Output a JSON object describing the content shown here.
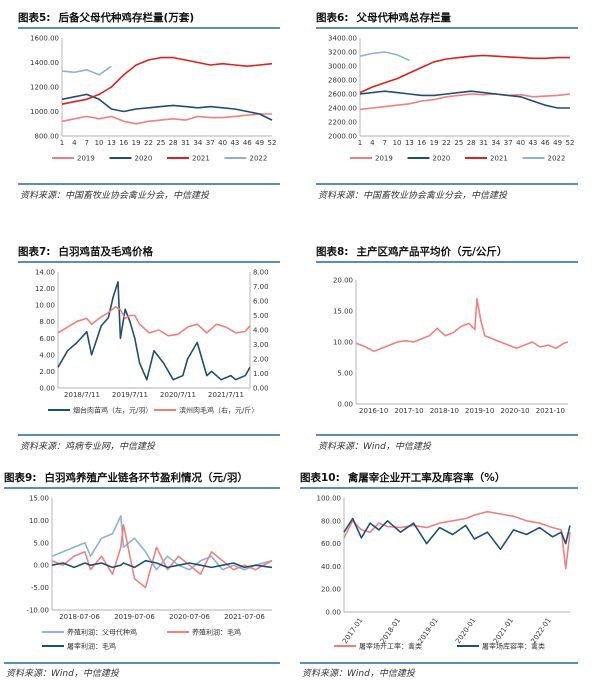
{
  "panels": [
    {
      "id": "fig5",
      "fig_label": "图表5:",
      "title": "后备父母代种鸡存栏量(万套)",
      "source": "资料来源：中国畜牧业协会禽业分会，中信建投",
      "chart_data": {
        "type": "line",
        "title": "后备父母代种鸡存栏量(万套)",
        "xlabel": "",
        "ylabel": "",
        "x_ticks": [
          "1",
          "4",
          "7",
          "10",
          "13",
          "16",
          "19",
          "22",
          "25",
          "28",
          "31",
          "34",
          "37",
          "40",
          "43",
          "46",
          "49",
          "52"
        ],
        "ylim": [
          800,
          1600
        ],
        "y_ticks": [
          "800.00",
          "1000.00",
          "1200.00",
          "1400.00",
          "1600.00"
        ],
        "grid": false,
        "legend": "bottom",
        "series": [
          {
            "name": "2019",
            "color": "#f08080",
            "x": [
              1,
              4,
              7,
              10,
              13,
              16,
              19,
              22,
              25,
              28,
              31,
              34,
              37,
              40,
              43,
              46,
              49,
              52
            ],
            "y": [
              920,
              940,
              960,
              940,
              960,
              920,
              900,
              920,
              930,
              940,
              930,
              960,
              950,
              950,
              960,
              970,
              980,
              980
            ]
          },
          {
            "name": "2020",
            "color": "#1f4e79",
            "x": [
              1,
              4,
              7,
              10,
              13,
              16,
              19,
              22,
              25,
              28,
              31,
              34,
              37,
              40,
              43,
              46,
              49,
              52
            ],
            "y": [
              1100,
              1120,
              1140,
              1100,
              1020,
              1000,
              1020,
              1030,
              1040,
              1050,
              1040,
              1030,
              1040,
              1030,
              1020,
              1000,
              980,
              930
            ]
          },
          {
            "name": "2021",
            "color": "#e02020",
            "x": [
              1,
              4,
              7,
              10,
              13,
              16,
              19,
              22,
              25,
              28,
              31,
              34,
              37,
              40,
              43,
              46,
              49,
              52
            ],
            "y": [
              1060,
              1080,
              1100,
              1140,
              1200,
              1300,
              1380,
              1420,
              1440,
              1440,
              1420,
              1400,
              1380,
              1390,
              1380,
              1370,
              1380,
              1390
            ]
          },
          {
            "name": "2022",
            "color": "#8fb3d0",
            "x": [
              1,
              4,
              7,
              10,
              13
            ],
            "y": [
              1330,
              1320,
              1340,
              1300,
              1370
            ]
          }
        ]
      }
    },
    {
      "id": "fig6",
      "fig_label": "图表6:",
      "title": "父母代种鸡总存栏量",
      "source": "资料来源：中国畜牧业协会禽业分会，中信建投",
      "chart_data": {
        "type": "line",
        "title": "父母代种鸡总存栏量",
        "xlabel": "",
        "ylabel": "",
        "x_ticks": [
          "1",
          "4",
          "7",
          "10",
          "13",
          "16",
          "19",
          "22",
          "25",
          "28",
          "31",
          "34",
          "37",
          "40",
          "43",
          "46",
          "49",
          "52"
        ],
        "ylim": [
          2000,
          3400
        ],
        "y_ticks": [
          "2000.00",
          "2200.00",
          "2400.00",
          "2600.00",
          "2800.00",
          "3000.00",
          "3200.00",
          "3400.00"
        ],
        "grid": false,
        "legend": "bottom",
        "series": [
          {
            "name": "2019",
            "color": "#f08080",
            "x": [
              1,
              4,
              7,
              10,
              13,
              16,
              19,
              22,
              25,
              28,
              31,
              34,
              37,
              40,
              43,
              46,
              49,
              52
            ],
            "y": [
              2380,
              2400,
              2420,
              2440,
              2460,
              2500,
              2520,
              2560,
              2580,
              2600,
              2590,
              2600,
              2580,
              2590,
              2560,
              2570,
              2580,
              2600
            ]
          },
          {
            "name": "2020",
            "color": "#1f4e79",
            "x": [
              1,
              4,
              7,
              10,
              13,
              16,
              19,
              22,
              25,
              28,
              31,
              34,
              37,
              40,
              43,
              46,
              49,
              52
            ],
            "y": [
              2600,
              2620,
              2640,
              2620,
              2600,
              2580,
              2580,
              2600,
              2620,
              2640,
              2620,
              2600,
              2580,
              2560,
              2500,
              2440,
              2400,
              2400
            ]
          },
          {
            "name": "2021",
            "color": "#e02020",
            "x": [
              1,
              4,
              7,
              10,
              13,
              16,
              19,
              22,
              25,
              28,
              31,
              34,
              37,
              40,
              43,
              46,
              49,
              52
            ],
            "y": [
              2620,
              2700,
              2760,
              2820,
              2900,
              2980,
              3060,
              3100,
              3120,
              3140,
              3150,
              3140,
              3130,
              3120,
              3110,
              3110,
              3120,
              3120
            ]
          },
          {
            "name": "2022",
            "color": "#8fb3d0",
            "x": [
              1,
              4,
              7,
              10,
              13
            ],
            "y": [
              3140,
              3180,
              3200,
              3160,
              3080
            ]
          }
        ]
      }
    },
    {
      "id": "fig7",
      "fig_label": "图表7:",
      "title": "白羽鸡苗及毛鸡价格",
      "source": "资料来源：鸡病专业网，中信建投",
      "chart_data": {
        "type": "line",
        "title": "白羽鸡苗及毛鸡价格",
        "xlabel": "",
        "ylabel": "",
        "x_ticks": [
          "2018/7/11",
          "2019/7/11",
          "2020/7/11",
          "2021/7/11"
        ],
        "xlim": [
          2018.3,
          2022.3
        ],
        "ylim": [
          0,
          14
        ],
        "y_ticks": [
          "0.00",
          "2.00",
          "4.00",
          "6.00",
          "8.00",
          "10.00",
          "12.00",
          "14.00"
        ],
        "ylim_right": [
          0,
          8
        ],
        "y2_ticks": [
          "0.00",
          "1.00",
          "2.00",
          "3.00",
          "4.00",
          "5.00",
          "6.00",
          "7.00",
          "8.00"
        ],
        "grid": false,
        "legend": "bottom",
        "series": [
          {
            "name": "烟台肉苗鸡（左，元/羽）",
            "color": "#1f4e79",
            "axis": "left",
            "x": [
              2018.3,
              2018.5,
              2018.7,
              2018.9,
              2019.0,
              2019.2,
              2019.35,
              2019.45,
              2019.55,
              2019.6,
              2019.7,
              2019.8,
              2019.9,
              2020.0,
              2020.15,
              2020.3,
              2020.5,
              2020.7,
              2020.9,
              2021.0,
              2021.2,
              2021.4,
              2021.5,
              2021.7,
              2021.9,
              2022.0,
              2022.2,
              2022.3
            ],
            "y": [
              2.5,
              4.5,
              5.5,
              6.8,
              4.0,
              7.5,
              8.5,
              11.0,
              12.8,
              6.0,
              9.5,
              8.0,
              6.0,
              3.0,
              1.0,
              4.5,
              3.0,
              1.0,
              1.5,
              3.5,
              5.5,
              1.5,
              2.0,
              1.0,
              1.5,
              1.0,
              1.5,
              2.5
            ]
          },
          {
            "name": "滨州肉毛鸡（右，元/斤）",
            "color": "#f08080",
            "axis": "right",
            "x": [
              2018.3,
              2018.5,
              2018.7,
              2018.9,
              2019.0,
              2019.2,
              2019.35,
              2019.5,
              2019.6,
              2019.7,
              2019.8,
              2019.9,
              2020.0,
              2020.2,
              2020.4,
              2020.6,
              2020.8,
              2021.0,
              2021.2,
              2021.4,
              2021.6,
              2021.8,
              2022.0,
              2022.2,
              2022.3
            ],
            "y": [
              3.8,
              4.2,
              4.6,
              4.8,
              4.4,
              4.9,
              5.2,
              5.6,
              5.4,
              4.8,
              5.0,
              5.0,
              4.4,
              3.8,
              4.0,
              3.6,
              3.7,
              4.2,
              4.4,
              3.8,
              4.4,
              4.2,
              3.8,
              3.9,
              4.3
            ]
          }
        ]
      }
    },
    {
      "id": "fig8",
      "fig_label": "图表8:",
      "title": "主产区鸡产品平均价（元/公斤）",
      "source": "资料来源：Wind，中信建投",
      "chart_data": {
        "type": "line",
        "title": "主产区鸡产品平均价（元/公斤）",
        "xlabel": "",
        "ylabel": "",
        "x_ticks": [
          "2016-10",
          "2017-10",
          "2018-10",
          "2019-10",
          "2020-10",
          "2021-10"
        ],
        "xlim": [
          2016.75,
          2022.1
        ],
        "ylim": [
          0,
          20
        ],
        "y_ticks": [
          "0.00",
          "5.00",
          "10.00",
          "15.00",
          "20.00"
        ],
        "grid": false,
        "legend": "none",
        "series": [
          {
            "name": "",
            "color": "#f08080",
            "x": [
              2016.75,
              2017.0,
              2017.2,
              2017.4,
              2017.6,
              2017.8,
              2018.0,
              2018.2,
              2018.4,
              2018.6,
              2018.8,
              2019.0,
              2019.2,
              2019.4,
              2019.6,
              2019.75,
              2019.8,
              2019.9,
              2020.0,
              2020.2,
              2020.4,
              2020.6,
              2020.8,
              2021.0,
              2021.2,
              2021.4,
              2021.6,
              2021.8,
              2022.0,
              2022.1
            ],
            "y": [
              9.8,
              9.2,
              8.5,
              9.0,
              9.5,
              10.0,
              10.2,
              10.0,
              10.5,
              11.0,
              12.2,
              11.0,
              11.5,
              12.5,
              13.0,
              12.0,
              17.0,
              13.5,
              11.0,
              10.5,
              10.0,
              9.5,
              9.0,
              9.5,
              10.0,
              9.2,
              9.5,
              9.0,
              9.8,
              10.0
            ]
          }
        ]
      }
    },
    {
      "id": "fig9",
      "fig_label": "图表9:",
      "title": "白羽鸡养殖产业链各环节盈利情况（元/羽）",
      "source": "资料来源：Wind，中信建投",
      "chart_data": {
        "type": "line",
        "title": "白羽鸡养殖产业链各环节盈利情况（元/羽）",
        "xlabel": "",
        "ylabel": "",
        "x_ticks": [
          "2018-07-06",
          "2019-07-06",
          "2020-07-06",
          "2021-07-06"
        ],
        "xlim": [
          2018.3,
          2022.3
        ],
        "ylim": [
          -10,
          15
        ],
        "y_ticks": [
          "-10.00",
          "-5.00",
          "0.00",
          "5.00",
          "10.00",
          "15.00"
        ],
        "grid": false,
        "legend": "bottom",
        "series": [
          {
            "name": "养殖利润：父母代种鸡",
            "color": "#8fb3d0",
            "x": [
              2018.3,
              2018.5,
              2018.7,
              2018.9,
              2019.0,
              2019.2,
              2019.4,
              2019.55,
              2019.6,
              2019.8,
              2020.0,
              2020.2,
              2020.4,
              2020.6,
              2020.8,
              2021.0,
              2021.2,
              2021.4,
              2021.6,
              2021.8,
              2022.0,
              2022.3
            ],
            "y": [
              2,
              3,
              4,
              5,
              2,
              6,
              7,
              11,
              4,
              6,
              3,
              -1,
              2,
              0,
              -1,
              1,
              2,
              -1,
              0,
              -1,
              0,
              1
            ]
          },
          {
            "name": "养殖利润：毛鸡",
            "color": "#f08080",
            "x": [
              2018.3,
              2018.5,
              2018.7,
              2018.9,
              2019.0,
              2019.2,
              2019.4,
              2019.55,
              2019.6,
              2019.8,
              2020.0,
              2020.2,
              2020.4,
              2020.6,
              2020.8,
              2021.0,
              2021.2,
              2021.4,
              2021.6,
              2021.8,
              2022.0,
              2022.3
            ],
            "y": [
              1,
              0,
              2,
              3,
              -1,
              2,
              -2,
              4,
              9,
              -3,
              -5,
              4,
              -1,
              2,
              0,
              -2,
              3,
              1,
              -1,
              0,
              -1,
              1
            ]
          },
          {
            "name": "屠宰利润：毛鸡",
            "color": "#1f4e79",
            "x": [
              2018.3,
              2018.5,
              2018.7,
              2018.9,
              2019.0,
              2019.2,
              2019.4,
              2019.55,
              2019.6,
              2019.8,
              2020.0,
              2020.2,
              2020.4,
              2020.6,
              2020.8,
              2021.0,
              2021.2,
              2021.4,
              2021.6,
              2021.8,
              2022.0,
              2022.3
            ],
            "y": [
              0,
              0.5,
              -0.5,
              0.5,
              0,
              0.5,
              -0.5,
              0,
              0.5,
              -0.5,
              1,
              0.5,
              -0.5,
              0,
              0.5,
              0,
              -0.5,
              0,
              0.5,
              -0.5,
              0,
              -0.5
            ]
          }
        ]
      }
    },
    {
      "id": "fig10",
      "fig_label": "图表10:",
      "title": "禽屠宰企业开工率及库容率（%）",
      "source": "资料来源：Wind，中信建投",
      "chart_data": {
        "type": "line",
        "title": "禽屠宰企业开工率及库容率（%）",
        "xlabel": "",
        "ylabel": "",
        "x_ticks": [
          "2017-01",
          "2018-01",
          "2019-01",
          "2020-01",
          "2021-01",
          "2022-01"
        ],
        "xlim": [
          2017.0,
          2022.2
        ],
        "ylim": [
          0,
          100
        ],
        "y_ticks": [
          "0.00",
          "20.00",
          "40.00",
          "60.00",
          "80.00",
          "100.00"
        ],
        "grid": false,
        "legend": "bottom",
        "series": [
          {
            "name": "屠宰场开工率：禽类",
            "color": "#f08080",
            "x": [
              2017.0,
              2017.2,
              2017.4,
              2017.6,
              2017.8,
              2018.0,
              2018.3,
              2018.6,
              2018.9,
              2019.2,
              2019.5,
              2019.8,
              2020.0,
              2020.3,
              2020.6,
              2020.9,
              2021.2,
              2021.5,
              2021.8,
              2022.0,
              2022.1,
              2022.2
            ],
            "y": [
              65,
              80,
              72,
              70,
              78,
              75,
              74,
              76,
              74,
              78,
              80,
              82,
              85,
              88,
              86,
              84,
              80,
              78,
              74,
              72,
              38,
              70
            ]
          },
          {
            "name": "屠宰场库容率：禽类",
            "color": "#1f4e79",
            "x": [
              2017.0,
              2017.2,
              2017.4,
              2017.6,
              2017.8,
              2018.0,
              2018.3,
              2018.6,
              2018.9,
              2019.2,
              2019.5,
              2019.8,
              2020.0,
              2020.3,
              2020.6,
              2020.9,
              2021.2,
              2021.5,
              2021.8,
              2022.0,
              2022.1,
              2022.2
            ],
            "y": [
              70,
              82,
              65,
              78,
              72,
              80,
              70,
              78,
              60,
              74,
              68,
              76,
              64,
              70,
              55,
              72,
              68,
              74,
              66,
              70,
              60,
              76
            ]
          }
        ]
      }
    }
  ]
}
